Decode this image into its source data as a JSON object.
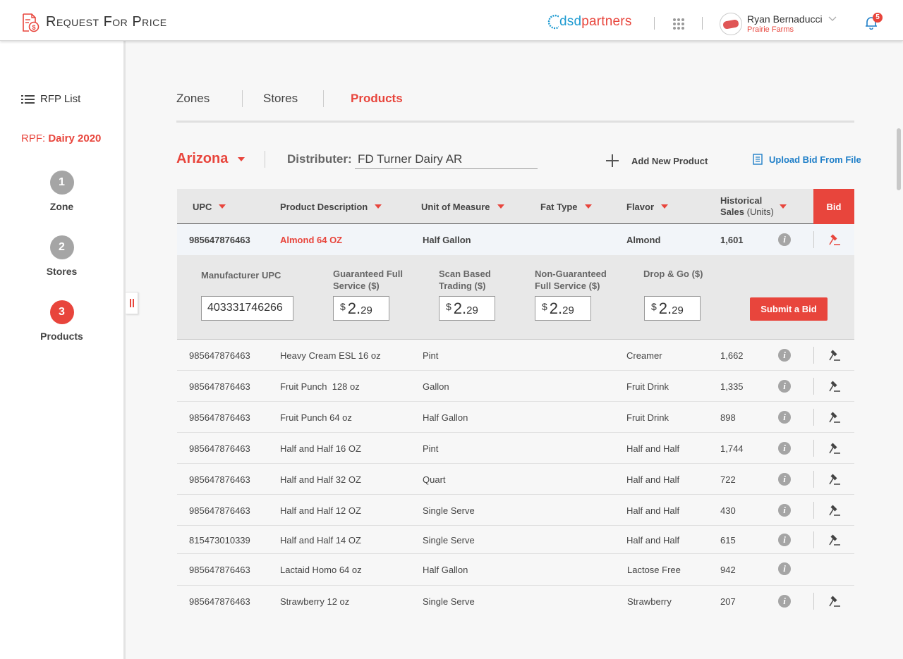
{
  "app": {
    "title": "Request For Price",
    "brand_main": "dsd",
    "brand_accent": "partners"
  },
  "user": {
    "name": "Ryan Bernaducci",
    "org": "Prairie Farms",
    "notifications": "5"
  },
  "sidebar": {
    "rfp_list_label": "RFP List",
    "rpf_prefix": "RPF:",
    "rpf_name": "Dairy 2020",
    "steps": [
      {
        "number": "1",
        "label": "Zone"
      },
      {
        "number": "2",
        "label": "Stores"
      },
      {
        "number": "3",
        "label": "Products"
      }
    ]
  },
  "tabs": [
    "Zones",
    "Stores",
    "Products"
  ],
  "filters": {
    "state": "Arizona",
    "distributor_label": "Distributer:",
    "distributor_value": "FD Turner Dairy AR",
    "add_product_label": "Add New Product",
    "upload_label": "Upload Bid From File"
  },
  "table": {
    "columns": {
      "upc": "UPC",
      "description": "Product Description",
      "uom": "Unit of Measure",
      "fat": "Fat Type",
      "flavor": "Flavor",
      "hist_a": "Historical",
      "hist_b": "Sales",
      "hist_c": "(Units)",
      "bid": "Bid"
    },
    "selected_row": {
      "upc": "985647876463",
      "description": "Almond 64 OZ",
      "uom": "Half Gallon",
      "fat": "",
      "flavor": "Almond",
      "sales": "1,601"
    },
    "bid_panel": {
      "mfr_upc_label": "Manufacturer UPC",
      "mfr_upc_value": "403331746266",
      "gfs_label_1": "Guaranteed Full",
      "gfs_label_2": "Service ($)",
      "sbt_label_1": "Scan Based",
      "sbt_label_2": "Trading ($)",
      "ngfs_label_1": "Non-Guaranteed",
      "ngfs_label_2": "Full Service ($)",
      "dg_label": "Drop & Go ($)",
      "currency": "$",
      "price_whole": "2.",
      "price_frac": "29",
      "submit_label": "Submit a Bid"
    },
    "rows": [
      {
        "upc": "985647876463",
        "description": "Heavy Cream ESL 16 oz",
        "uom": "Pint",
        "flavor": "Creamer",
        "sales": "1,662"
      },
      {
        "upc": "985647876463",
        "description": "Fruit Punch  128 oz",
        "uom": "Gallon",
        "flavor": "Fruit Drink",
        "sales": "1,335"
      },
      {
        "upc": "985647876463",
        "description": "Fruit Punch 64 oz",
        "uom": "Half Gallon",
        "flavor": "Fruit Drink",
        "sales": "898"
      },
      {
        "upc": "985647876463",
        "description": "Half and Half 16 OZ",
        "uom": "Pint",
        "flavor": "Half and Half",
        "sales": "1,744"
      },
      {
        "upc": "985647876463",
        "description": "Half and Half 32 OZ",
        "uom": "Quart",
        "flavor": "Half and Half",
        "sales": "722"
      },
      {
        "upc": "985647876463",
        "description": "Half and Half 12 OZ",
        "uom": "Single Serve",
        "flavor": "Half and Half",
        "sales": "430"
      },
      {
        "upc": "815473010339",
        "description": "Half and Half 14 OZ",
        "uom": "Single Serve",
        "flavor": "Half and Half",
        "sales": "615"
      },
      {
        "upc": "985647876463",
        "description": "Lactaid Homo 64 oz",
        "uom": "Half Gallon",
        "flavor": "Lactose Free",
        "sales": "942"
      },
      {
        "upc": "985647876463",
        "description": "Strawberry 12 oz",
        "uom": "Single Serve",
        "flavor": "Strawberry",
        "sales": "207"
      }
    ],
    "info_glyph": "i"
  },
  "colors": {
    "accent": "#e8453c",
    "link": "#1f7fc8",
    "brand": "#1f9bd1"
  }
}
